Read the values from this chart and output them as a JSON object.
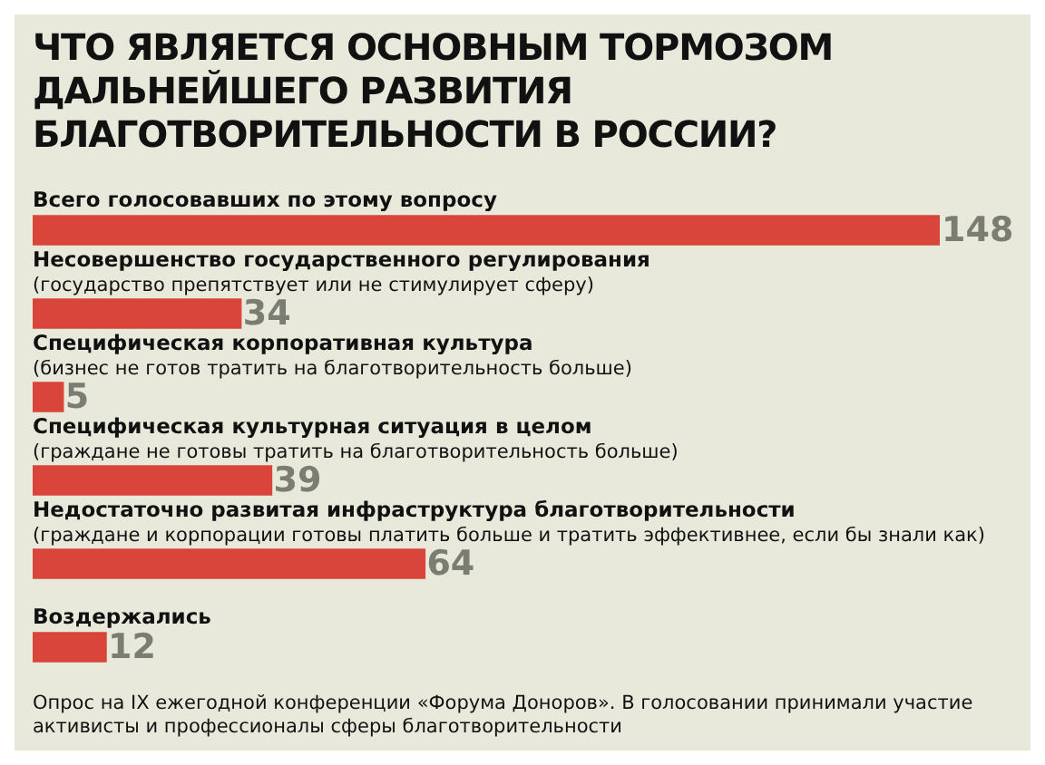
{
  "chart_data": {
    "type": "bar",
    "orientation": "horizontal",
    "title": "ЧТО ЯВЛЯЕТСЯ ОСНОВНЫМ ТОРМОЗОМ ДАЛЬНЕЙШЕГО РАЗВИТИЯ БЛАГОТВОРИТЕЛЬНОСТИ В РОССИИ?",
    "categories": [
      "Всего голосовавших по этому вопросу",
      "Несовершенство государственного регулирования\n(государство препятствует или не стимулирует сферу)",
      "Специфическая корпоративная культура\n(бизнес не готов тратить на благотворительность больше)",
      "Специфическая культурная ситуация в целом\n(граждане не готовы тратить на благотворительность больше)",
      "Недостаточно развитая инфраструктура благотворительности\n(граждане и корпорации готовы платить больше и тратить эффективнее, если бы знали как)",
      "Воздержались"
    ],
    "values": [
      148,
      34,
      5,
      39,
      64,
      12
    ],
    "color": "#d9453a",
    "data_labels": true,
    "annotations": [
      "Опрос на IX ежегодной конференции «Форума Доноров». В голосовании принимали участие активисты и профессионалы сферы благотворительности"
    ]
  }
}
